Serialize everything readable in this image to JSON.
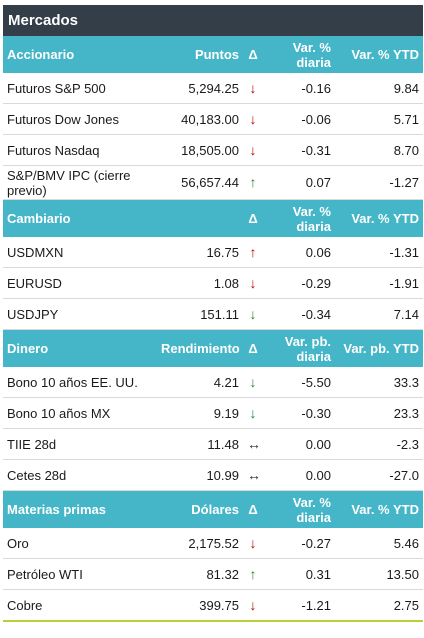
{
  "title": "Mercados",
  "colors": {
    "down": "#c00000",
    "up": "#2e7d32",
    "flat": "#333333"
  },
  "sections": [
    {
      "header": [
        "Accionario",
        "Puntos",
        "Δ",
        "Var. % diaria",
        "Var. % YTD"
      ],
      "rows": [
        {
          "name": "Futuros S&P 500",
          "value": "5,294.25",
          "dir": "down",
          "arrow": "↓",
          "d1": "-0.16",
          "d2": "9.84"
        },
        {
          "name": "Futuros Dow Jones",
          "value": "40,183.00",
          "dir": "down",
          "arrow": "↓",
          "d1": "-0.06",
          "d2": "5.71"
        },
        {
          "name": "Futuros Nasdaq",
          "value": "18,505.00",
          "dir": "down",
          "arrow": "↓",
          "d1": "-0.31",
          "d2": "8.70"
        },
        {
          "name": "S&P/BMV IPC (cierre previo)",
          "value": "56,657.44",
          "dir": "up",
          "arrow": "↑",
          "d1": "0.07",
          "d2": "-1.27"
        }
      ]
    },
    {
      "header": [
        "Cambiario",
        "",
        "Δ",
        "Var. % diaria",
        "Var. % YTD"
      ],
      "rows": [
        {
          "name": "USDMXN",
          "value": "16.75",
          "dir": "down",
          "arrow": "↑",
          "d1": "0.06",
          "d2": "-1.31"
        },
        {
          "name": "EURUSD",
          "value": "1.08",
          "dir": "down",
          "arrow": "↓",
          "d1": "-0.29",
          "d2": "-1.91"
        },
        {
          "name": "USDJPY",
          "value": "151.11",
          "dir": "up",
          "arrow": "↓",
          "d1": "-0.34",
          "d2": "7.14"
        }
      ]
    },
    {
      "header": [
        "Dinero",
        "Rendimiento",
        "Δ",
        "Var. pb. diaria",
        "Var. pb. YTD"
      ],
      "rows": [
        {
          "name": "Bono 10 años EE. UU.",
          "value": "4.21",
          "dir": "up",
          "arrow": "↓",
          "d1": "-5.50",
          "d2": "33.3"
        },
        {
          "name": "Bono 10 años MX",
          "value": "9.19",
          "dir": "up",
          "arrow": "↓",
          "d1": "-0.30",
          "d2": "23.3"
        },
        {
          "name": "TIIE 28d",
          "value": "11.48",
          "dir": "flat",
          "arrow": "↔",
          "d1": "0.00",
          "d2": "-2.3"
        },
        {
          "name": "Cetes 28d",
          "value": "10.99",
          "dir": "flat",
          "arrow": "↔",
          "d1": "0.00",
          "d2": "-27.0"
        }
      ]
    },
    {
      "header": [
        "Materias primas",
        "Dólares",
        "Δ",
        "Var. % diaria",
        "Var. % YTD"
      ],
      "rows": [
        {
          "name": "Oro",
          "value": "2,175.52",
          "dir": "down",
          "arrow": "↓",
          "d1": "-0.27",
          "d2": "5.46"
        },
        {
          "name": "Petróleo WTI",
          "value": "81.32",
          "dir": "up",
          "arrow": "↑",
          "d1": "0.31",
          "d2": "13.50"
        },
        {
          "name": "Cobre",
          "value": "399.75",
          "dir": "down",
          "arrow": "↓",
          "d1": "-1.21",
          "d2": "2.75"
        }
      ]
    }
  ]
}
